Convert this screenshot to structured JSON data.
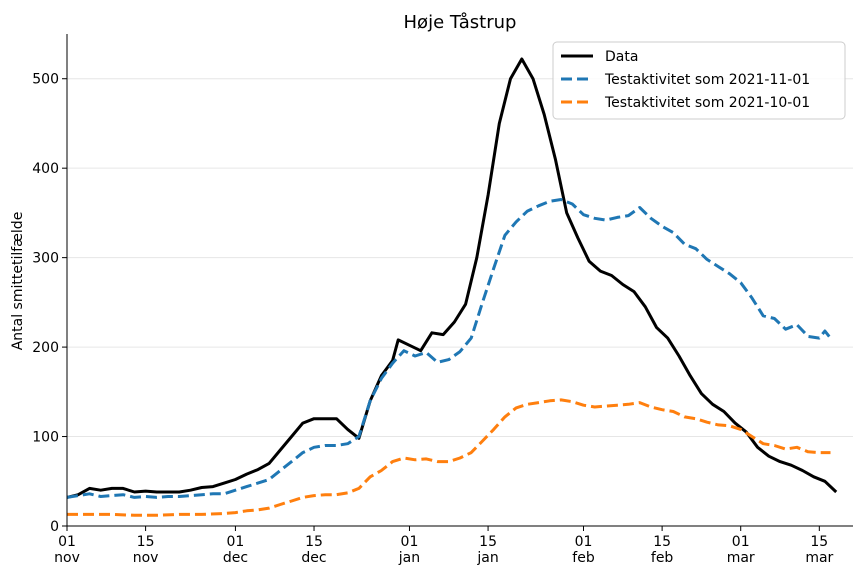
{
  "chart_data": {
    "type": "line",
    "title": "Høje Tåstrup",
    "xlabel": "",
    "ylabel": "Antal smittetilfælde",
    "ylim": [
      0,
      550
    ],
    "xlim": [
      "2021-11-01",
      "2022-03-21"
    ],
    "grid": "horizontal",
    "legend_placement": "top-right",
    "y_ticks": [
      0,
      100,
      200,
      300,
      400,
      500
    ],
    "x_ticks": [
      {
        "date": "2021-11-01",
        "day": "01",
        "month": "nov"
      },
      {
        "date": "2021-11-15",
        "day": "15",
        "month": "nov"
      },
      {
        "date": "2021-12-01",
        "day": "01",
        "month": "dec"
      },
      {
        "date": "2021-12-15",
        "day": "15",
        "month": "dec"
      },
      {
        "date": "2022-01-01",
        "day": "01",
        "month": "jan"
      },
      {
        "date": "2022-01-15",
        "day": "15",
        "month": "jan"
      },
      {
        "date": "2022-02-01",
        "day": "01",
        "month": "feb"
      },
      {
        "date": "2022-02-15",
        "day": "15",
        "month": "feb"
      },
      {
        "date": "2022-03-01",
        "day": "01",
        "month": "mar"
      },
      {
        "date": "2022-03-15",
        "day": "15",
        "month": "mar"
      }
    ],
    "series": [
      {
        "name": "Data",
        "color": "#000000",
        "dash": "solid",
        "points": [
          [
            "2021-11-01",
            32
          ],
          [
            "2021-11-03",
            35
          ],
          [
            "2021-11-05",
            42
          ],
          [
            "2021-11-07",
            40
          ],
          [
            "2021-11-09",
            42
          ],
          [
            "2021-11-11",
            42
          ],
          [
            "2021-11-13",
            38
          ],
          [
            "2021-11-15",
            39
          ],
          [
            "2021-11-17",
            38
          ],
          [
            "2021-11-19",
            38
          ],
          [
            "2021-11-21",
            38
          ],
          [
            "2021-11-23",
            40
          ],
          [
            "2021-11-25",
            43
          ],
          [
            "2021-11-27",
            44
          ],
          [
            "2021-11-29",
            48
          ],
          [
            "2021-12-01",
            52
          ],
          [
            "2021-12-03",
            58
          ],
          [
            "2021-12-05",
            63
          ],
          [
            "2021-12-07",
            70
          ],
          [
            "2021-12-09",
            85
          ],
          [
            "2021-12-11",
            100
          ],
          [
            "2021-12-13",
            115
          ],
          [
            "2021-12-15",
            120
          ],
          [
            "2021-12-17",
            120
          ],
          [
            "2021-12-19",
            120
          ],
          [
            "2021-12-21",
            108
          ],
          [
            "2021-12-23",
            98
          ],
          [
            "2021-12-25",
            140
          ],
          [
            "2021-12-27",
            168
          ],
          [
            "2021-12-29",
            185
          ],
          [
            "2021-12-30",
            208
          ],
          [
            "2022-01-01",
            202
          ],
          [
            "2022-01-03",
            196
          ],
          [
            "2022-01-05",
            216
          ],
          [
            "2022-01-07",
            214
          ],
          [
            "2022-01-09",
            228
          ],
          [
            "2022-01-11",
            248
          ],
          [
            "2022-01-13",
            300
          ],
          [
            "2022-01-15",
            370
          ],
          [
            "2022-01-17",
            450
          ],
          [
            "2022-01-19",
            500
          ],
          [
            "2022-01-21",
            522
          ],
          [
            "2022-01-23",
            500
          ],
          [
            "2022-01-25",
            460
          ],
          [
            "2022-01-27",
            410
          ],
          [
            "2022-01-29",
            350
          ],
          [
            "2022-01-31",
            322
          ],
          [
            "2022-02-02",
            296
          ],
          [
            "2022-02-04",
            285
          ],
          [
            "2022-02-06",
            280
          ],
          [
            "2022-02-08",
            270
          ],
          [
            "2022-02-10",
            262
          ],
          [
            "2022-02-12",
            245
          ],
          [
            "2022-02-14",
            222
          ],
          [
            "2022-02-16",
            210
          ],
          [
            "2022-02-18",
            190
          ],
          [
            "2022-02-20",
            168
          ],
          [
            "2022-02-22",
            148
          ],
          [
            "2022-02-24",
            136
          ],
          [
            "2022-02-26",
            128
          ],
          [
            "2022-02-28",
            115
          ],
          [
            "2022-03-02",
            105
          ],
          [
            "2022-03-04",
            88
          ],
          [
            "2022-03-06",
            78
          ],
          [
            "2022-03-08",
            72
          ],
          [
            "2022-03-10",
            68
          ],
          [
            "2022-03-12",
            62
          ],
          [
            "2022-03-14",
            55
          ],
          [
            "2022-03-16",
            50
          ],
          [
            "2022-03-18",
            38
          ]
        ]
      },
      {
        "name": "Testaktivitet som 2021-11-01",
        "color": "#1f77b4",
        "dash": "dashed",
        "points": [
          [
            "2021-11-01",
            32
          ],
          [
            "2021-11-03",
            34
          ],
          [
            "2021-11-05",
            36
          ],
          [
            "2021-11-07",
            33
          ],
          [
            "2021-11-09",
            34
          ],
          [
            "2021-11-11",
            35
          ],
          [
            "2021-11-13",
            32
          ],
          [
            "2021-11-15",
            33
          ],
          [
            "2021-11-17",
            32
          ],
          [
            "2021-11-19",
            33
          ],
          [
            "2021-11-21",
            33
          ],
          [
            "2021-11-23",
            34
          ],
          [
            "2021-11-25",
            35
          ],
          [
            "2021-11-27",
            36
          ],
          [
            "2021-11-29",
            36
          ],
          [
            "2021-12-01",
            40
          ],
          [
            "2021-12-03",
            44
          ],
          [
            "2021-12-05",
            48
          ],
          [
            "2021-12-07",
            52
          ],
          [
            "2021-12-09",
            62
          ],
          [
            "2021-12-11",
            72
          ],
          [
            "2021-12-13",
            82
          ],
          [
            "2021-12-15",
            88
          ],
          [
            "2021-12-17",
            90
          ],
          [
            "2021-12-19",
            90
          ],
          [
            "2021-12-21",
            92
          ],
          [
            "2021-12-23",
            100
          ],
          [
            "2021-12-25",
            140
          ],
          [
            "2021-12-27",
            165
          ],
          [
            "2021-12-29",
            182
          ],
          [
            "2021-12-31",
            196
          ],
          [
            "2022-01-02",
            190
          ],
          [
            "2022-01-04",
            194
          ],
          [
            "2022-01-06",
            183
          ],
          [
            "2022-01-08",
            186
          ],
          [
            "2022-01-10",
            195
          ],
          [
            "2022-01-12",
            210
          ],
          [
            "2022-01-14",
            250
          ],
          [
            "2022-01-16",
            288
          ],
          [
            "2022-01-18",
            325
          ],
          [
            "2022-01-20",
            340
          ],
          [
            "2022-01-22",
            352
          ],
          [
            "2022-01-24",
            358
          ],
          [
            "2022-01-26",
            363
          ],
          [
            "2022-01-28",
            365
          ],
          [
            "2022-01-30",
            360
          ],
          [
            "2022-02-01",
            348
          ],
          [
            "2022-02-03",
            344
          ],
          [
            "2022-02-05",
            342
          ],
          [
            "2022-02-07",
            345
          ],
          [
            "2022-02-09",
            347
          ],
          [
            "2022-02-11",
            356
          ],
          [
            "2022-02-13",
            344
          ],
          [
            "2022-02-15",
            335
          ],
          [
            "2022-02-17",
            328
          ],
          [
            "2022-02-19",
            315
          ],
          [
            "2022-02-21",
            310
          ],
          [
            "2022-02-23",
            298
          ],
          [
            "2022-02-25",
            290
          ],
          [
            "2022-02-27",
            282
          ],
          [
            "2022-03-01",
            272
          ],
          [
            "2022-03-03",
            255
          ],
          [
            "2022-03-05",
            235
          ],
          [
            "2022-03-07",
            232
          ],
          [
            "2022-03-09",
            220
          ],
          [
            "2022-03-11",
            225
          ],
          [
            "2022-03-13",
            212
          ],
          [
            "2022-03-15",
            210
          ],
          [
            "2022-03-16",
            218
          ],
          [
            "2022-03-17",
            210
          ]
        ]
      },
      {
        "name": "Testaktivitet som 2021-10-01",
        "color": "#ff7f0e",
        "dash": "dashed",
        "points": [
          [
            "2021-11-01",
            13
          ],
          [
            "2021-11-05",
            13
          ],
          [
            "2021-11-09",
            13
          ],
          [
            "2021-11-13",
            12
          ],
          [
            "2021-11-17",
            12
          ],
          [
            "2021-11-21",
            13
          ],
          [
            "2021-11-25",
            13
          ],
          [
            "2021-11-29",
            14
          ],
          [
            "2021-12-01",
            15
          ],
          [
            "2021-12-03",
            17
          ],
          [
            "2021-12-05",
            18
          ],
          [
            "2021-12-07",
            20
          ],
          [
            "2021-12-09",
            24
          ],
          [
            "2021-12-11",
            28
          ],
          [
            "2021-12-13",
            32
          ],
          [
            "2021-12-15",
            34
          ],
          [
            "2021-12-17",
            35
          ],
          [
            "2021-12-19",
            35
          ],
          [
            "2021-12-21",
            37
          ],
          [
            "2021-12-23",
            42
          ],
          [
            "2021-12-25",
            55
          ],
          [
            "2021-12-27",
            62
          ],
          [
            "2021-12-29",
            72
          ],
          [
            "2021-12-31",
            76
          ],
          [
            "2022-01-02",
            74
          ],
          [
            "2022-01-04",
            75
          ],
          [
            "2022-01-06",
            72
          ],
          [
            "2022-01-08",
            72
          ],
          [
            "2022-01-10",
            76
          ],
          [
            "2022-01-12",
            82
          ],
          [
            "2022-01-14",
            95
          ],
          [
            "2022-01-16",
            108
          ],
          [
            "2022-01-18",
            122
          ],
          [
            "2022-01-20",
            132
          ],
          [
            "2022-01-22",
            136
          ],
          [
            "2022-01-24",
            138
          ],
          [
            "2022-01-26",
            140
          ],
          [
            "2022-01-28",
            141
          ],
          [
            "2022-01-30",
            139
          ],
          [
            "2022-02-01",
            135
          ],
          [
            "2022-02-03",
            133
          ],
          [
            "2022-02-05",
            134
          ],
          [
            "2022-02-07",
            135
          ],
          [
            "2022-02-09",
            136
          ],
          [
            "2022-02-11",
            138
          ],
          [
            "2022-02-13",
            133
          ],
          [
            "2022-02-15",
            130
          ],
          [
            "2022-02-17",
            128
          ],
          [
            "2022-02-19",
            122
          ],
          [
            "2022-02-21",
            120
          ],
          [
            "2022-02-23",
            116
          ],
          [
            "2022-02-25",
            113
          ],
          [
            "2022-02-27",
            112
          ],
          [
            "2022-03-01",
            108
          ],
          [
            "2022-03-03",
            100
          ],
          [
            "2022-03-05",
            92
          ],
          [
            "2022-03-07",
            90
          ],
          [
            "2022-03-09",
            86
          ],
          [
            "2022-03-11",
            88
          ],
          [
            "2022-03-13",
            83
          ],
          [
            "2022-03-15",
            82
          ],
          [
            "2022-03-17",
            82
          ]
        ]
      }
    ]
  }
}
